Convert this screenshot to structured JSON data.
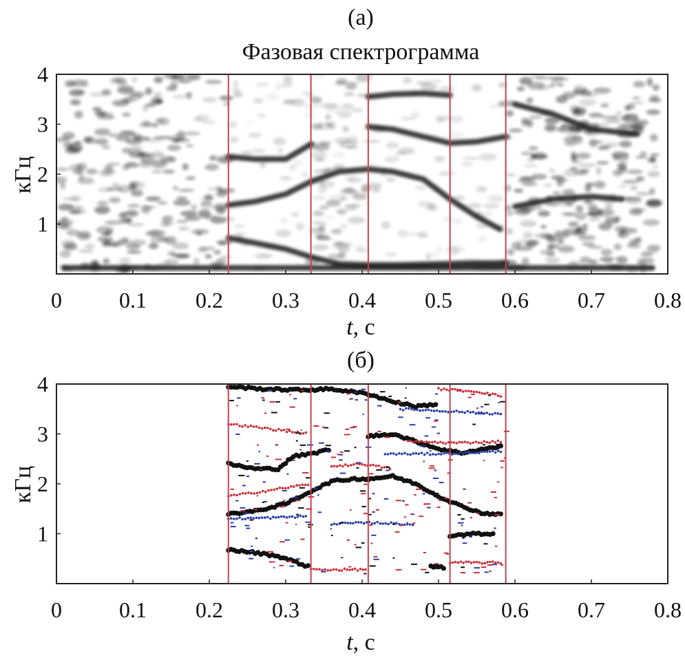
{
  "chart_data": [
    {
      "type": "heatmap",
      "panel_label": "(а)",
      "title": "Фазовая спектрограмма",
      "xlabel": "t, с",
      "xlabel_var": "t",
      "xlabel_unit": ", с",
      "ylabel": "кГц",
      "xlim": [
        0,
        0.8
      ],
      "ylim": [
        0,
        4
      ],
      "x_ticks": [
        "0",
        "0.1",
        "0.2",
        "0.3",
        "0.4",
        "0.5",
        "0.6",
        "0.7",
        "0.8"
      ],
      "y_ticks": [
        "1",
        "2",
        "3",
        "4"
      ],
      "x_tick_values": [
        0,
        0.1,
        0.2,
        0.3,
        0.4,
        0.5,
        0.6,
        0.7,
        0.8
      ],
      "y_tick_values": [
        1,
        2,
        3,
        4
      ],
      "grid": false,
      "colormap": "grayscale (dark = high)",
      "segment_boundaries": [
        0.225,
        0.333,
        0.408,
        0.515,
        0.588
      ],
      "boundary_color": "#c8424d",
      "ink_color": "#1a1a1a",
      "formant_tracks": [
        {
          "t": [
            0.225,
            0.26,
            0.3,
            0.333,
            0.37,
            0.408,
            0.45,
            0.5,
            0.55,
            0.588
          ],
          "f": [
            0.72,
            0.62,
            0.5,
            0.34,
            0.2,
            0.18,
            0.18,
            0.2,
            0.22,
            0.22
          ]
        },
        {
          "t": [
            0.225,
            0.26,
            0.3,
            0.333,
            0.37,
            0.408,
            0.44,
            0.48,
            0.515,
            0.55,
            0.58
          ],
          "f": [
            1.38,
            1.45,
            1.6,
            1.85,
            2.05,
            2.1,
            2.05,
            1.9,
            1.5,
            1.15,
            0.9
          ]
        },
        {
          "t": [
            0.225,
            0.26,
            0.3,
            0.333
          ],
          "f": [
            2.35,
            2.3,
            2.3,
            2.6
          ]
        },
        {
          "t": [
            0.408,
            0.44,
            0.48,
            0.515,
            0.55,
            0.588
          ],
          "f": [
            2.95,
            2.9,
            2.75,
            2.62,
            2.65,
            2.75
          ]
        },
        {
          "t": [
            0.408,
            0.44,
            0.48,
            0.515
          ],
          "f": [
            3.55,
            3.6,
            3.62,
            3.58
          ]
        },
        {
          "t": [
            0.6,
            0.65,
            0.7,
            0.74
          ],
          "f": [
            1.35,
            1.5,
            1.55,
            1.5
          ]
        },
        {
          "t": [
            0.6,
            0.65,
            0.7,
            0.76
          ],
          "f": [
            3.4,
            3.2,
            2.9,
            2.8
          ]
        },
        {
          "t": [
            0.01,
            0.3,
            0.6,
            0.78
          ],
          "f": [
            0.12,
            0.12,
            0.12,
            0.12
          ]
        }
      ]
    },
    {
      "type": "scatter",
      "panel_label": "(б)",
      "xlabel": "t, с",
      "xlabel_var": "t",
      "xlabel_unit": ", с",
      "ylabel": "кГц",
      "xlim": [
        0,
        0.8
      ],
      "ylim": [
        0,
        4
      ],
      "x_ticks": [
        "0",
        "0.1",
        "0.2",
        "0.3",
        "0.4",
        "0.5",
        "0.6",
        "0.7",
        "0.8"
      ],
      "y_ticks": [
        "1",
        "2",
        "3",
        "4"
      ],
      "x_tick_values": [
        0,
        0.1,
        0.2,
        0.3,
        0.4,
        0.5,
        0.6,
        0.7,
        0.8
      ],
      "y_tick_values": [
        1,
        2,
        3,
        4
      ],
      "grid": false,
      "segment_boundaries": [
        0.225,
        0.333,
        0.408,
        0.515,
        0.588
      ],
      "boundary_color": "#c8424d",
      "series_colors": {
        "black": "#111111",
        "red": "#c8303a",
        "blue": "#2a3fa8"
      },
      "tracks": [
        {
          "color": "black",
          "t": [
            0.225,
            0.26,
            0.29,
            0.31,
            0.333
          ],
          "f": [
            0.68,
            0.62,
            0.55,
            0.45,
            0.32
          ]
        },
        {
          "color": "black",
          "t": [
            0.225,
            0.26,
            0.3,
            0.333,
            0.36,
            0.39,
            0.408,
            0.44,
            0.47,
            0.5,
            0.53,
            0.56,
            0.585
          ],
          "f": [
            1.4,
            1.45,
            1.6,
            1.85,
            2.05,
            2.1,
            2.1,
            2.15,
            2.0,
            1.75,
            1.55,
            1.4,
            1.4
          ]
        },
        {
          "color": "black",
          "t": [
            0.225,
            0.26,
            0.29,
            0.31,
            0.333,
            0.36
          ],
          "f": [
            2.4,
            2.3,
            2.3,
            2.55,
            2.6,
            2.7
          ]
        },
        {
          "color": "black",
          "t": [
            0.408,
            0.44,
            0.47,
            0.5,
            0.53,
            0.56,
            0.585
          ],
          "f": [
            2.95,
            3.0,
            2.85,
            2.7,
            2.62,
            2.7,
            2.75
          ]
        },
        {
          "color": "black",
          "t": [
            0.225,
            0.27,
            0.32,
            0.36,
            0.408,
            0.44,
            0.47,
            0.5
          ],
          "f": [
            3.95,
            3.9,
            3.88,
            3.9,
            3.8,
            3.65,
            3.55,
            3.6
          ]
        },
        {
          "color": "black",
          "t": [
            0.515,
            0.545,
            0.575
          ],
          "f": [
            0.95,
            1.0,
            0.98
          ]
        },
        {
          "color": "black",
          "t": [
            0.49,
            0.5,
            0.51
          ],
          "f": [
            0.35,
            0.34,
            0.3
          ]
        },
        {
          "color": "red",
          "t": [
            0.225,
            0.27,
            0.333
          ],
          "f": [
            1.75,
            1.85,
            2.0
          ]
        },
        {
          "color": "red",
          "t": [
            0.333,
            0.37,
            0.408
          ],
          "f": [
            0.28,
            0.28,
            0.28
          ]
        },
        {
          "color": "red",
          "t": [
            0.515,
            0.55,
            0.585
          ],
          "f": [
            0.42,
            0.42,
            0.42
          ]
        },
        {
          "color": "red",
          "t": [
            0.36,
            0.4,
            0.44
          ],
          "f": [
            2.35,
            2.4,
            2.3
          ]
        },
        {
          "color": "red",
          "t": [
            0.46,
            0.52,
            0.585
          ],
          "f": [
            2.85,
            2.82,
            2.85
          ]
        },
        {
          "color": "red",
          "t": [
            0.225,
            0.28,
            0.33
          ],
          "f": [
            3.2,
            3.1,
            3.0
          ]
        },
        {
          "color": "red",
          "t": [
            0.5,
            0.55,
            0.585
          ],
          "f": [
            3.9,
            3.85,
            3.75
          ]
        },
        {
          "color": "blue",
          "t": [
            0.225,
            0.28,
            0.33
          ],
          "f": [
            1.3,
            1.32,
            1.35
          ]
        },
        {
          "color": "blue",
          "t": [
            0.43,
            0.5,
            0.585
          ],
          "f": [
            2.6,
            2.6,
            2.65
          ]
        },
        {
          "color": "blue",
          "t": [
            0.36,
            0.42,
            0.47
          ],
          "f": [
            1.2,
            1.22,
            1.18
          ]
        },
        {
          "color": "blue",
          "t": [
            0.45,
            0.52,
            0.585
          ],
          "f": [
            3.5,
            3.45,
            3.4
          ]
        }
      ]
    }
  ]
}
